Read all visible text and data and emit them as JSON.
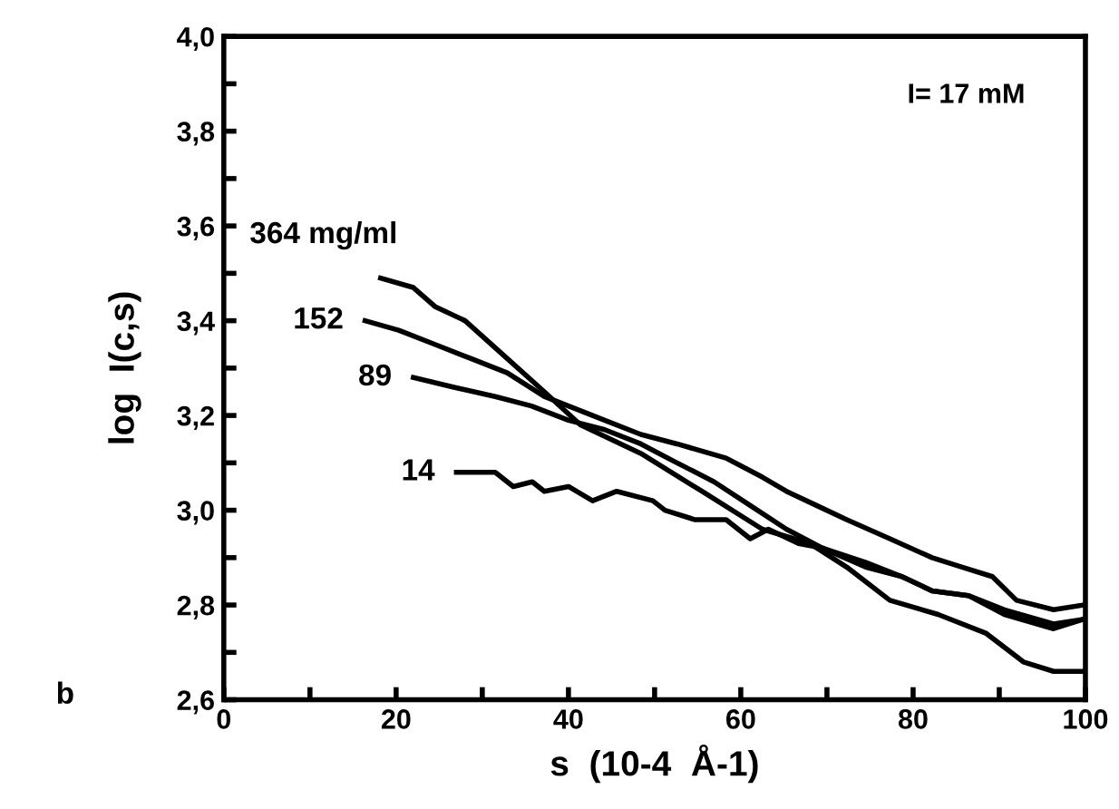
{
  "chart_data": {
    "type": "line",
    "xlabel": "s  (10-4  Å-1)",
    "ylabel": "log  I(c,s)",
    "annotations": [
      "I= 17 mM",
      "b"
    ],
    "xlim": [
      0,
      100
    ],
    "ylim": [
      2.6,
      4.0
    ],
    "xticks": [
      0,
      {
        "value": 10,
        "label": null
      },
      20,
      {
        "value": 30,
        "label": null
      },
      40,
      {
        "value": 50,
        "label": null
      },
      60,
      {
        "value": 70,
        "label": null
      },
      80,
      {
        "value": 90,
        "label": null
      },
      100
    ],
    "yticks": [
      {
        "value": 2.6,
        "label": "2,6"
      },
      {
        "value": 2.7,
        "label": null
      },
      {
        "value": 2.8,
        "label": "2,8"
      },
      {
        "value": 2.9,
        "label": null
      },
      {
        "value": 3.0,
        "label": "3,0"
      },
      {
        "value": 3.1,
        "label": null
      },
      {
        "value": 3.2,
        "label": "3,2"
      },
      {
        "value": 3.3,
        "label": null
      },
      {
        "value": 3.4,
        "label": "3,4"
      },
      {
        "value": 3.5,
        "label": null
      },
      {
        "value": 3.6,
        "label": "3,6"
      },
      {
        "value": 3.7,
        "label": null
      },
      {
        "value": 3.8,
        "label": "3,8"
      },
      {
        "value": 3.9,
        "label": null
      },
      {
        "value": 4.0,
        "label": "4,0"
      }
    ],
    "grid": false,
    "legend": false,
    "marker": "none",
    "line_style": "solid",
    "series": [
      {
        "name": "364 mg/ml",
        "color": "#000000",
        "x": [
          18.2,
          22,
          24.5,
          28,
          32.9,
          37.2,
          41.4,
          48.4,
          55.5,
          62.5,
          68,
          72.3,
          77.3,
          82.9,
          88.5,
          92.8,
          96.3,
          99.8
        ],
        "values": [
          3.49,
          3.47,
          3.43,
          3.4,
          3.32,
          3.25,
          3.18,
          3.12,
          3.04,
          2.96,
          2.93,
          2.88,
          2.81,
          2.78,
          2.74,
          2.68,
          2.66,
          2.66
        ]
      },
      {
        "name": "152",
        "color": "#000000",
        "x": [
          16.4,
          20.3,
          24.5,
          28.7,
          32.9,
          37.2,
          40,
          44.2,
          48.4,
          52.6,
          58.3,
          62.5,
          65.3,
          68.8,
          72.3,
          77.3,
          82.2,
          85.7,
          89.2,
          92,
          96.3,
          99.8
        ],
        "values": [
          3.4,
          3.38,
          3.35,
          3.32,
          3.29,
          3.24,
          3.22,
          3.19,
          3.16,
          3.14,
          3.11,
          3.07,
          3.04,
          3.01,
          2.98,
          2.94,
          2.9,
          2.88,
          2.86,
          2.81,
          2.79,
          2.8
        ]
      },
      {
        "name": "89",
        "color": "#000000",
        "x": [
          22,
          26.6,
          31.5,
          35.7,
          40,
          44.2,
          48.4,
          52.6,
          56.9,
          61.1,
          65.3,
          69.5,
          74.5,
          78.7,
          82.2,
          86.4,
          90.6,
          96.3,
          99.8
        ],
        "values": [
          3.28,
          3.26,
          3.24,
          3.22,
          3.19,
          3.17,
          3.14,
          3.1,
          3.06,
          3.01,
          2.96,
          2.92,
          2.89,
          2.86,
          2.83,
          2.82,
          2.78,
          2.75,
          2.77
        ]
      },
      {
        "name": "14",
        "color": "#000000",
        "x": [
          27,
          30.1,
          31.5,
          33.6,
          35.8,
          37.2,
          40,
          42.8,
          45.6,
          49.8,
          51.2,
          54.7,
          58.3,
          61.1,
          63.2,
          66.7,
          69.5,
          74.5,
          78.7,
          82.2,
          86.4,
          90.6,
          96.3,
          99.8
        ],
        "values": [
          3.08,
          3.08,
          3.08,
          3.05,
          3.06,
          3.04,
          3.05,
          3.02,
          3.04,
          3.02,
          3.0,
          2.98,
          2.98,
          2.94,
          2.96,
          2.93,
          2.92,
          2.88,
          2.86,
          2.83,
          2.82,
          2.79,
          2.76,
          2.77
        ]
      }
    ]
  }
}
